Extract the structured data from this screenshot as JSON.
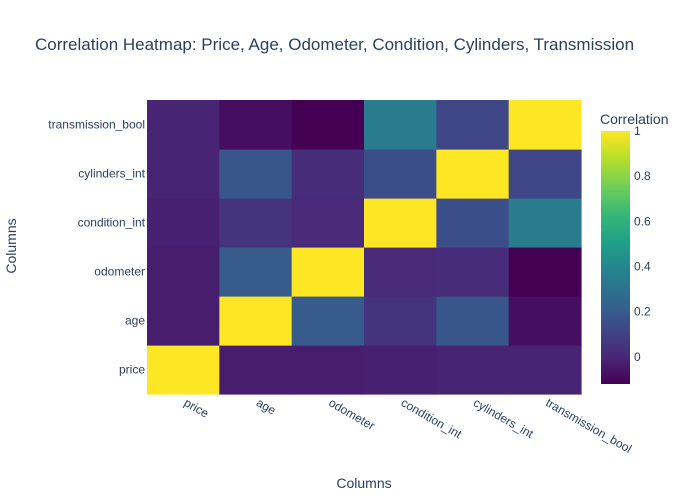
{
  "chart_data": {
    "type": "heatmap",
    "title": "Correlation Heatmap: Price, Age, Odometer, Condition, Cylinders, Transmission",
    "xlabel": "Columns",
    "ylabel": "Columns",
    "x_categories": [
      "price",
      "age",
      "odometer",
      "condition_int",
      "cylinders_int",
      "transmission_bool"
    ],
    "y_categories": [
      "price",
      "age",
      "odometer",
      "condition_int",
      "cylinders_int",
      "transmission_bool"
    ],
    "z": [
      [
        1.0,
        -0.03,
        -0.03,
        -0.02,
        -0.01,
        -0.01
      ],
      [
        -0.03,
        1.0,
        0.2,
        0.05,
        0.18,
        -0.08
      ],
      [
        -0.03,
        0.2,
        1.0,
        0.01,
        0.02,
        -0.12
      ],
      [
        -0.02,
        0.05,
        0.01,
        1.0,
        0.15,
        0.35
      ],
      [
        -0.01,
        0.18,
        0.02,
        0.15,
        1.0,
        0.12
      ],
      [
        -0.01,
        -0.08,
        -0.12,
        0.35,
        0.12,
        1.0
      ]
    ],
    "colorscale": "Viridis",
    "zmin": -0.12,
    "zmax": 1.0,
    "colorbar": {
      "title": "Correlation",
      "ticks": [
        0,
        0.2,
        0.4,
        0.6,
        0.8,
        1
      ],
      "tick_labels": [
        "0",
        "0.2",
        "0.4",
        "0.6",
        "0.8",
        "1"
      ]
    }
  }
}
